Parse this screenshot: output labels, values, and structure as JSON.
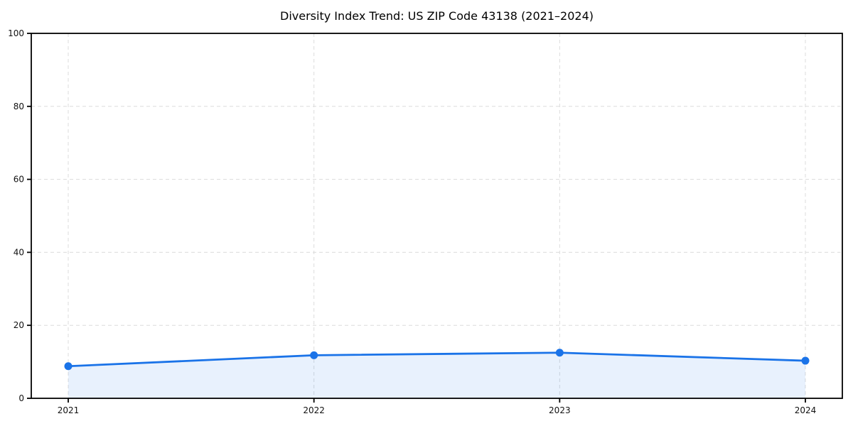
{
  "chart_data": {
    "type": "line",
    "title": "Diversity Index Trend: US ZIP Code 43138 (2021–2024)",
    "categories": [
      "2021",
      "2022",
      "2023",
      "2024"
    ],
    "series": [
      {
        "name": "Diversity Index",
        "values": [
          8.8,
          11.8,
          12.5,
          10.3
        ]
      }
    ],
    "xlabel": "",
    "ylabel": "",
    "ylim": [
      0,
      100
    ],
    "yticks": [
      0,
      20,
      40,
      60,
      80,
      100
    ],
    "grid": true,
    "grid_style": "dashed",
    "legend_position": "none",
    "marker": "circle",
    "area_fill": true
  },
  "colors": {
    "line": "#1a73e8",
    "marker": "#1a73e8",
    "area_fill": "rgba(26, 115, 232, 0.10)",
    "grid": "#dcdcdc",
    "axis": "#000000",
    "tick_text": "#111111",
    "background": "#ffffff"
  }
}
